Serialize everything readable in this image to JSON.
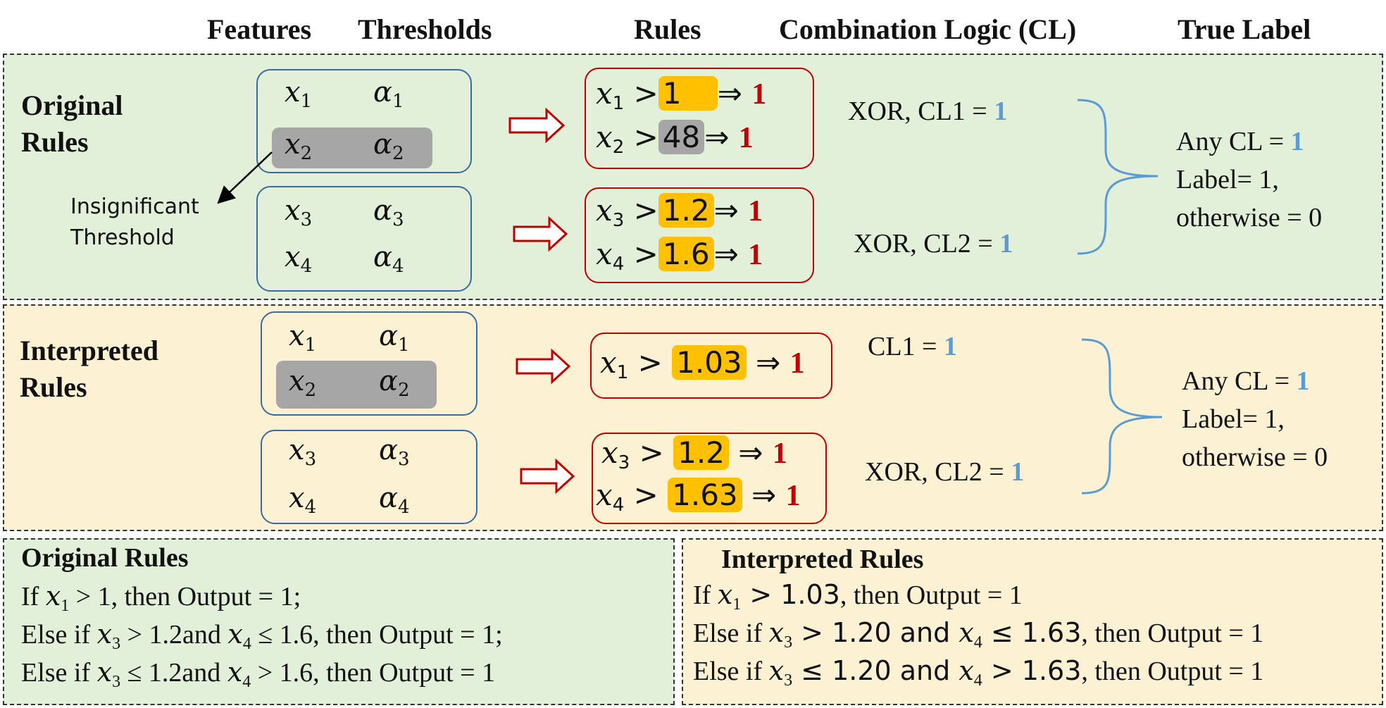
{
  "headers": {
    "features": "Features",
    "thresholds": "Thresholds",
    "rules": "Rules",
    "combination_logic": "Combination Logic (CL)",
    "true_label": "True Label"
  },
  "original": {
    "title": "Original Rules",
    "thresholds": [
      "1",
      "48",
      "1.2",
      "1.6"
    ],
    "cl1": {
      "prefix": "XOR, CL1 = ",
      "value": "1"
    },
    "cl2": {
      "prefix": "XOR, CL2 = ",
      "value": "1"
    },
    "insignificant_note": "Insignificant Threshold"
  },
  "interpreted": {
    "title": "Interpreted Rules",
    "thresholds": [
      "1.03",
      "1.2",
      "1.63"
    ],
    "cl1": {
      "prefix": "CL1 = ",
      "value": "1"
    },
    "cl2": {
      "prefix": "XOR, CL2 = ",
      "value": "1"
    }
  },
  "true_label": {
    "any_cl_prefix": "Any CL = ",
    "any_cl_value": "1",
    "label_line": "Label= 1,",
    "otherwise_line": "otherwise = 0"
  },
  "output": "1",
  "text_rules": {
    "original_title": "Original Rules",
    "interpreted_title": "Interpreted Rules",
    "orig": {
      "l1_a": "If ",
      "l1_b": " > 1, then Output = 1;",
      "l2_a": "Else if ",
      "l2_b": " > 1.2and ",
      "l2_c": " ≤ 1.6, then Output = 1;",
      "l3_a": "Else if ",
      "l3_b": " ≤ 1.2and ",
      "l3_c": " > 1.6, then Output = 1"
    },
    "interp": {
      "l1_a": "If ",
      "l1_b": " > 1.03",
      "l1_c": ", then Output = 1",
      "l2_a": "Else if ",
      "l2_b": " > 1.20 and ",
      "l2_c": " ≤ 1.63",
      "l2_d": ", then Output = 1",
      "l3_a": "Else if ",
      "l3_b": " ≤ 1.20 and ",
      "l3_c": " > 1.63",
      "l3_d": ", then Output = 1"
    }
  },
  "colors": {
    "green_panel": "#e2efd9",
    "yellow_panel": "#fdf1d3",
    "feature_box_border": "#3a6b9e",
    "rule_box_border": "#c00000",
    "highlight_threshold": "#ffc000",
    "insignificant_grey": "#a6a6a6",
    "cl_value_blue": "#5b9bd5"
  }
}
